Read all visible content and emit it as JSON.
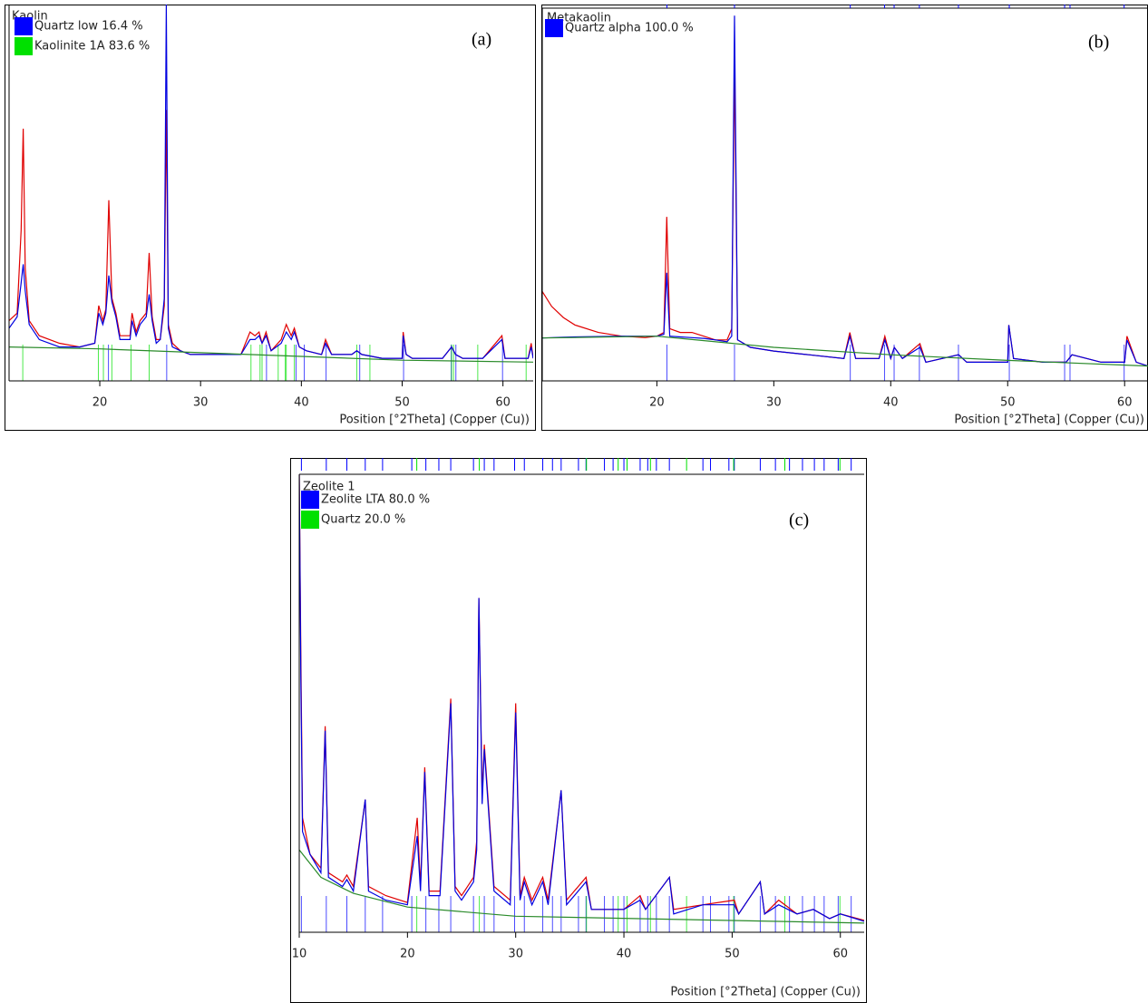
{
  "chart_data": [
    {
      "type": "line",
      "title": "Kaolin",
      "panel_label": "(a)",
      "xlabel": "Position [°2Theta] (Copper (Cu))",
      "xlim": [
        11,
        63
      ],
      "xticks": [
        20,
        30,
        40,
        50,
        60
      ],
      "ylim": [
        0,
        100
      ],
      "peak_markers_top": false,
      "profiles": [
        {
          "color": "#e00000",
          "x": [
            11,
            11.8,
            12.2,
            12.4,
            12.6,
            13,
            14,
            16,
            18,
            19.5,
            19.9,
            20.3,
            20.6,
            20.9,
            21.2,
            21.6,
            22,
            23,
            23.2,
            23.6,
            24,
            24.6,
            24.9,
            25.2,
            25.6,
            26,
            26.4,
            26.6,
            26.8,
            27.2,
            28,
            29,
            30,
            32,
            34,
            34.9,
            35.4,
            35.8,
            36.1,
            36.5,
            37,
            38,
            38.5,
            39,
            39.3,
            39.8,
            40.5,
            42,
            42.4,
            43,
            45,
            45.5,
            46,
            48,
            50,
            50.1,
            50.4,
            51,
            54,
            54.9,
            55.3,
            56,
            58,
            59.9,
            60.2,
            61,
            62.5,
            62.8,
            63
          ],
          "values": [
            16,
            18,
            40,
            67,
            30,
            16,
            12,
            10,
            9,
            10,
            20,
            16,
            19,
            48,
            22,
            18,
            12,
            12,
            18,
            13,
            16,
            18,
            34,
            17,
            11,
            11,
            20,
            72,
            15,
            10,
            8,
            7,
            7,
            7,
            7,
            13,
            12,
            13,
            10,
            13,
            8,
            11,
            15,
            12,
            14,
            9,
            8,
            7,
            11,
            7,
            7,
            8,
            7,
            6,
            6,
            13,
            7,
            6,
            6,
            9,
            7,
            6,
            6,
            12,
            6,
            6,
            6,
            10,
            6
          ]
        },
        {
          "color": "#0000e0",
          "x": [
            11,
            11.8,
            12.2,
            12.4,
            12.6,
            13,
            14,
            16,
            18,
            19.5,
            19.9,
            20.3,
            20.6,
            20.9,
            21.2,
            21.6,
            22,
            23,
            23.2,
            23.6,
            24,
            24.6,
            24.9,
            25.2,
            25.6,
            26,
            26.4,
            26.6,
            26.8,
            27.2,
            28,
            29,
            30,
            32,
            34,
            34.9,
            35.4,
            35.8,
            36.1,
            36.5,
            37,
            38,
            38.5,
            39,
            39.3,
            39.8,
            40.5,
            42,
            42.4,
            43,
            45,
            45.5,
            46,
            48,
            50,
            50.1,
            50.4,
            51,
            54,
            54.9,
            55.3,
            56,
            58,
            59.9,
            60.2,
            61,
            62.5,
            62.8,
            63
          ],
          "values": [
            14,
            17,
            26,
            31,
            24,
            15,
            11,
            9,
            9,
            10,
            18,
            15,
            18,
            28,
            21,
            17,
            11,
            11,
            16,
            12,
            15,
            17,
            23,
            16,
            10,
            11,
            22,
            100,
            14,
            9,
            8,
            7,
            7,
            7,
            7,
            11,
            11,
            12,
            10,
            12,
            8,
            10,
            13,
            11,
            13,
            9,
            8,
            7,
            10,
            7,
            7,
            8,
            7,
            6,
            6,
            12,
            7,
            6,
            6,
            9,
            7,
            6,
            6,
            11,
            6,
            6,
            6,
            9,
            6
          ]
        },
        {
          "color": "#2a8a2a",
          "x": [
            11,
            20,
            30,
            40,
            50,
            63
          ],
          "values": [
            9,
            8.5,
            7.5,
            6.5,
            5.5,
            5
          ]
        }
      ],
      "phases": [
        {
          "name": "Quartz low 16.4 %",
          "color": "#0000ff",
          "peaks": [
            20.86,
            26.64,
            36.54,
            39.47,
            40.29,
            42.45,
            45.79,
            50.14,
            54.87,
            55.33,
            59.96
          ]
        },
        {
          "name": "Kaolinite 1A 83.6 %",
          "color": "#00e000",
          "peaks": [
            12.36,
            19.86,
            20.36,
            21.2,
            23.1,
            24.9,
            35.0,
            35.9,
            36.1,
            37.7,
            38.4,
            38.5,
            39.3,
            45.5,
            46.8,
            54.9,
            55.1,
            57.5,
            62.3
          ]
        }
      ]
    },
    {
      "type": "line",
      "title": "Metakaolin",
      "panel_label": "(b)",
      "xlabel": "Position [°2Theta] (Copper (Cu))",
      "xlim": [
        10.2,
        62
      ],
      "xticks": [
        20,
        30,
        40,
        50,
        60
      ],
      "ylim": [
        0,
        100
      ],
      "peak_markers_top": true,
      "profiles": [
        {
          "color": "#e00000",
          "x": [
            10.2,
            11,
            12,
            13,
            15,
            17,
            19,
            20,
            20.6,
            20.85,
            21.1,
            22,
            23,
            24,
            25,
            26,
            26.4,
            26.64,
            26.9,
            28,
            30,
            33,
            36,
            36.5,
            37,
            39,
            39.5,
            40,
            40.3,
            41,
            42.5,
            43,
            45.8,
            46.5,
            50,
            50.1,
            50.5,
            53,
            55,
            55.5,
            58,
            60,
            60.2,
            61,
            62
          ],
          "values": [
            24,
            20,
            17,
            15,
            13,
            12,
            11.6,
            12,
            13,
            44,
            14,
            13,
            13,
            12,
            11,
            11,
            14,
            85,
            11,
            9,
            8,
            7,
            6,
            13,
            6,
            6,
            12,
            6,
            9,
            6,
            10,
            5,
            7,
            5,
            5,
            15,
            6,
            5,
            5,
            7,
            5,
            5,
            12,
            5,
            4
          ]
        },
        {
          "color": "#0000e0",
          "x": [
            10.2,
            11,
            12,
            13,
            15,
            17,
            19,
            20,
            20.6,
            20.85,
            21.1,
            22,
            23,
            24,
            25,
            26,
            26.4,
            26.64,
            26.9,
            28,
            30,
            33,
            36,
            36.5,
            37,
            39,
            39.5,
            40,
            40.3,
            41,
            42.5,
            43,
            45.8,
            46.5,
            50,
            50.1,
            50.5,
            53,
            55,
            55.5,
            58,
            60,
            60.2,
            61,
            62
          ],
          "values": [
            11.5,
            11.6,
            11.7,
            11.8,
            11.9,
            12,
            12,
            12,
            12.5,
            29,
            12,
            11.8,
            11.6,
            11.4,
            11,
            10.5,
            12,
            98,
            11,
            9,
            8,
            7,
            6,
            12,
            6,
            6,
            11,
            6,
            9,
            6,
            9,
            5,
            7,
            5,
            5,
            15,
            6,
            5,
            5,
            7,
            5,
            5,
            11,
            5,
            4
          ]
        },
        {
          "color": "#2a8a2a",
          "x": [
            10.2,
            20,
            30,
            40,
            50,
            62
          ],
          "values": [
            11.5,
            12,
            9,
            7,
            5.5,
            4
          ]
        }
      ],
      "phases": [
        {
          "name": "Quartz alpha 100.0 %",
          "color": "#0000ff",
          "peaks": [
            20.86,
            26.64,
            36.54,
            39.47,
            40.29,
            42.45,
            45.79,
            50.14,
            54.87,
            55.33,
            59.96
          ]
        }
      ]
    },
    {
      "type": "line",
      "title": "Zeolite 1",
      "panel_label": "(c)",
      "xlabel": "Position [°2Theta] (Copper (Cu))",
      "xlim": [
        10,
        62.2
      ],
      "xticks": [
        10,
        20,
        30,
        40,
        50,
        60
      ],
      "ylim": [
        0,
        100
      ],
      "peak_markers_top": true,
      "profiles": [
        {
          "color": "#e00000",
          "x": [
            10,
            10.15,
            10.3,
            11,
            12,
            12.4,
            12.7,
            14,
            14.4,
            15,
            16.1,
            16.4,
            18,
            20,
            20.9,
            21.2,
            21.6,
            22,
            23,
            24,
            24.4,
            25,
            26.1,
            26.4,
            26.6,
            26.9,
            27.1,
            28,
            29.5,
            30,
            30.4,
            30.8,
            31.5,
            32.5,
            33,
            34.2,
            34.7,
            36.5,
            37,
            40,
            41.5,
            42,
            44.2,
            44.6,
            47.3,
            50.2,
            50.6,
            52.6,
            53,
            54.3,
            56,
            57.5,
            59,
            60,
            62.2
          ],
          "values": [
            100,
            60,
            25,
            17,
            14,
            45,
            13,
            11,
            12.5,
            10,
            29,
            10,
            8,
            6.5,
            25,
            10,
            36,
            9,
            9,
            51,
            10,
            8,
            12,
            20,
            73,
            30,
            41,
            10,
            7,
            50,
            8,
            12,
            7,
            12,
            7,
            31,
            7,
            12,
            5,
            5,
            8,
            5,
            12,
            5,
            6,
            7,
            4,
            11,
            4,
            7,
            4,
            5,
            3,
            4,
            2.6
          ]
        },
        {
          "color": "#0000e0",
          "x": [
            10,
            10.15,
            10.3,
            11,
            12,
            12.4,
            12.7,
            14,
            14.4,
            15,
            16.1,
            16.4,
            18,
            20,
            20.9,
            21.2,
            21.6,
            22,
            23,
            24,
            24.4,
            25,
            26.1,
            26.4,
            26.6,
            26.9,
            27.1,
            28,
            29.5,
            30,
            30.4,
            30.8,
            31.5,
            32.5,
            33,
            34.2,
            34.7,
            36.5,
            37,
            40,
            41.5,
            42,
            44.2,
            44.6,
            47.3,
            50.2,
            50.6,
            52.6,
            53,
            54.3,
            56,
            57.5,
            59,
            60,
            62.2
          ],
          "values": [
            100,
            55,
            22,
            17,
            13,
            44,
            12,
            10,
            11.5,
            9,
            29,
            9,
            7,
            6,
            21,
            9,
            35,
            8,
            8,
            50,
            9,
            7,
            11,
            18,
            73,
            28,
            40,
            9,
            6,
            48,
            7,
            11,
            6,
            11,
            6,
            31,
            6,
            11,
            5,
            5,
            7,
            5,
            12,
            4,
            6,
            6,
            4,
            11,
            4,
            6,
            4,
            5,
            3,
            4,
            2.4
          ]
        },
        {
          "color": "#2a8a2a",
          "x": [
            10,
            12,
            15,
            20,
            30,
            62.2
          ],
          "values": [
            18,
            12,
            8.5,
            5.5,
            3.5,
            2
          ]
        }
      ],
      "phases": [
        {
          "name": "Zeolite LTA 80.0 %",
          "color": "#0000ff",
          "peaks": [
            10.2,
            12.5,
            14.4,
            16.1,
            17.7,
            20.4,
            21.7,
            22.9,
            24.0,
            26.1,
            27.1,
            28.0,
            29.9,
            30.8,
            32.5,
            33.4,
            34.2,
            35.8,
            36.5,
            38.2,
            39.0,
            40.0,
            41.5,
            42.2,
            43.0,
            44.2,
            47.3,
            48.0,
            49.7,
            50.2,
            52.6,
            54.0,
            55.3,
            56.5,
            57.6,
            58.5,
            59.8,
            61.0
          ]
        },
        {
          "name": "Quartz 20.0 %",
          "color": "#00e000",
          "peaks": [
            20.86,
            26.64,
            36.54,
            39.47,
            40.29,
            42.45,
            45.79,
            50.14,
            54.87,
            59.96
          ]
        }
      ]
    }
  ]
}
